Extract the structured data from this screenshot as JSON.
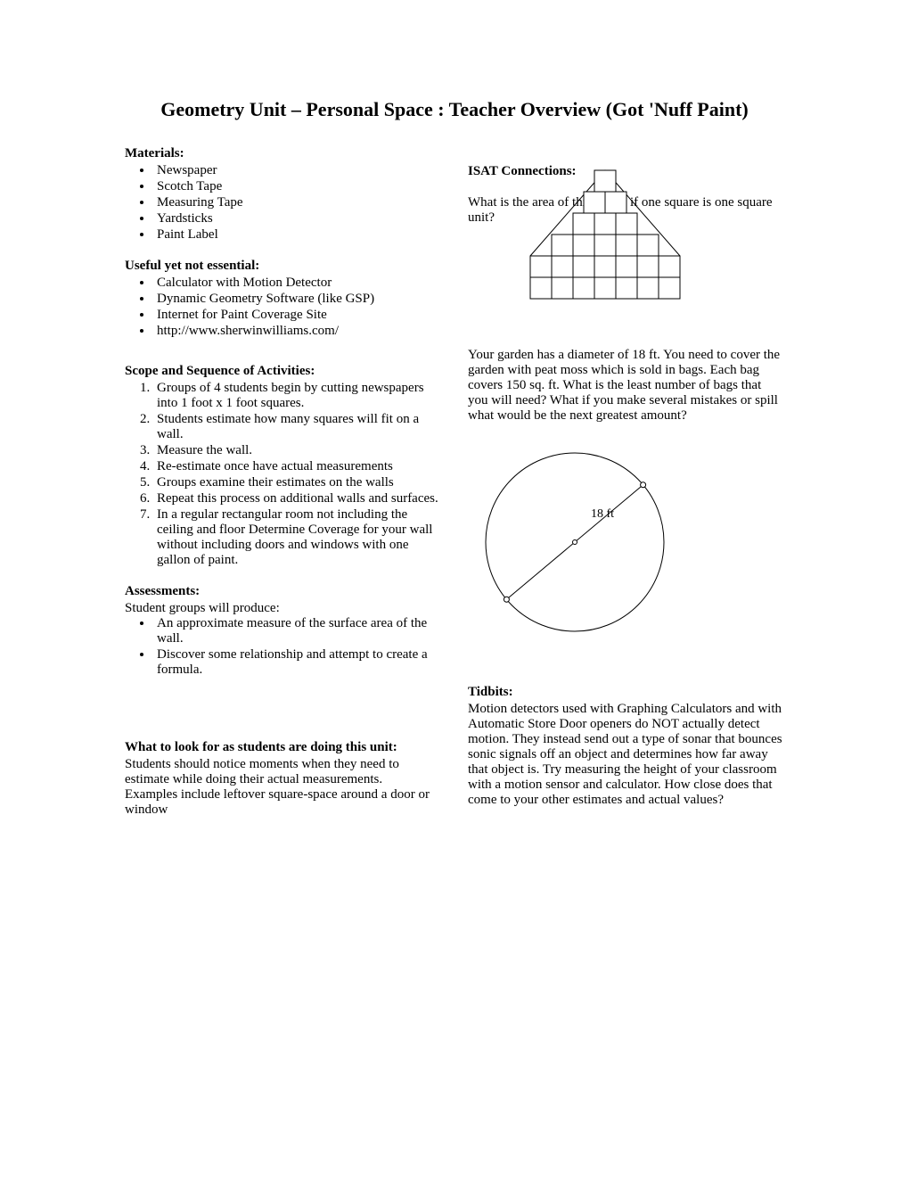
{
  "title": "Geometry Unit – Personal Space : Teacher Overview (Got 'Nuff Paint)",
  "left": {
    "materials": {
      "heading": "Materials:",
      "items": [
        "Newspaper",
        "Scotch Tape",
        "Measuring Tape",
        "Yardsticks",
        "Paint Label"
      ]
    },
    "useful": {
      "heading": "Useful yet not essential:",
      "items": [
        "Calculator with Motion Detector",
        "Dynamic Geometry Software (like GSP)",
        "Internet for Paint Coverage Site",
        "http://www.sherwinwilliams.com/"
      ]
    },
    "scope": {
      "heading": "Scope and Sequence of Activities:",
      "items": [
        "Groups of 4 students begin by cutting newspapers into 1 foot x 1 foot squares.",
        "Students estimate how many squares will fit on a wall.",
        "Measure the wall.",
        "Re-estimate once have actual measurements",
        "Groups examine their estimates on the walls",
        "Repeat this process on additional walls and surfaces.",
        "In a regular rectangular room not including the ceiling and floor Determine Coverage for your wall without including doors and windows with one gallon of paint."
      ]
    },
    "assessments": {
      "heading": "Assessments:",
      "intro": "Student groups will produce:",
      "items": [
        "An approximate measure of the surface area of the wall.",
        "Discover some relationship and attempt to create a formula."
      ]
    },
    "lookfor": {
      "heading": "What to look for as students are doing this unit:",
      "p1": "Students should notice moments when they need to estimate while doing their actual measurements.",
      "p2": "Examples include leftover square-space around a door or window"
    }
  },
  "right": {
    "isat_heading": "ISAT Connections:",
    "q1_text": "What is the area of this figure if one square is one square unit?",
    "q2_text": "Your garden has a diameter of 18 ft.   You need to cover the garden with peat moss which is sold in bags.  Each bag covers 150 sq. ft.  What is the least number of bags that you will need?  What if you make several mistakes or spill what would be the next greatest amount?",
    "circle_label": "18 ft",
    "tidbits_heading": "Tidbits:",
    "tidbits_text": "Motion detectors used with Graphing Calculators and with Automatic Store Door openers do NOT actually detect motion.  They instead send out a type of sonar that bounces sonic signals off an object and determines how far away that object is.  Try measuring the height of your classroom with a motion sensor and calculator.  How close does that come to your other estimates and actual values?"
  },
  "house_grid": {
    "cell": 24,
    "rows_top_to_bottom": [
      1,
      2,
      3,
      5,
      7,
      7
    ],
    "width_cells": 7,
    "stroke": "#000000",
    "fill": "#ffffff"
  },
  "circle_fig": {
    "radius": 100,
    "stroke": "#000000",
    "fill": "#ffffff",
    "label_fontsize": 14
  }
}
